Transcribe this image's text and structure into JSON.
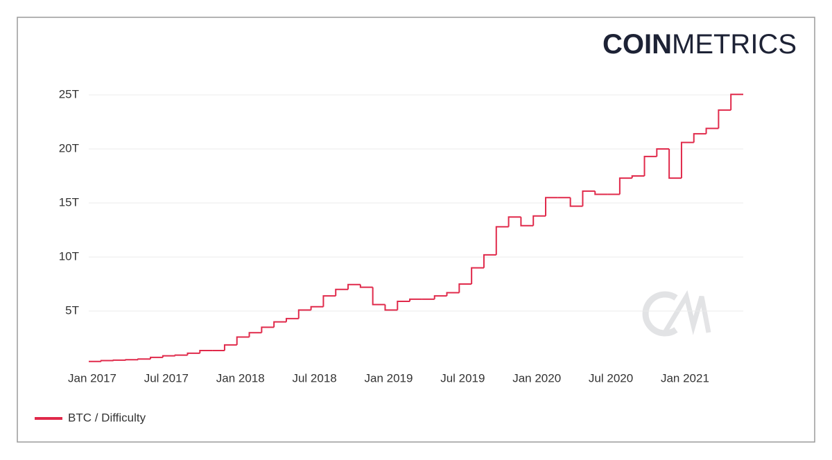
{
  "chart_data": {
    "type": "line",
    "step": true,
    "brand": {
      "bold": "COIN",
      "light": "METRICS"
    },
    "x": [
      "2017-01",
      "2017-02",
      "2017-03",
      "2017-04",
      "2017-05",
      "2017-06",
      "2017-07",
      "2017-08",
      "2017-09",
      "2017-10",
      "2017-11",
      "2017-12",
      "2018-01",
      "2018-02",
      "2018-03",
      "2018-04",
      "2018-05",
      "2018-06",
      "2018-07",
      "2018-08",
      "2018-09",
      "2018-10",
      "2018-11",
      "2018-12",
      "2019-01",
      "2019-02",
      "2019-03",
      "2019-04",
      "2019-05",
      "2019-06",
      "2019-07",
      "2019-08",
      "2019-09",
      "2019-10",
      "2019-11",
      "2019-12",
      "2020-01",
      "2020-02",
      "2020-03",
      "2020-04",
      "2020-05",
      "2020-06",
      "2020-07",
      "2020-08",
      "2020-09",
      "2020-10",
      "2020-11",
      "2020-12",
      "2021-01",
      "2021-02",
      "2021-03",
      "2021-04",
      "2021-05"
    ],
    "series": [
      {
        "name": "BTC / Difficulty",
        "color": "#e0294a",
        "values": [
          0.34,
          0.42,
          0.46,
          0.5,
          0.56,
          0.71,
          0.86,
          0.92,
          1.1,
          1.35,
          1.35,
          1.87,
          2.6,
          3.0,
          3.5,
          4.0,
          4.3,
          5.1,
          5.4,
          6.4,
          7.0,
          7.45,
          7.2,
          5.6,
          5.1,
          5.9,
          6.1,
          6.1,
          6.4,
          6.7,
          7.5,
          9.0,
          10.2,
          12.8,
          13.7,
          12.9,
          13.8,
          15.5,
          15.5,
          14.7,
          16.1,
          15.8,
          15.8,
          17.3,
          17.5,
          19.3,
          20.0,
          17.3,
          20.6,
          21.4,
          21.9,
          23.6,
          25.05
        ]
      }
    ],
    "xlim": [
      "2017-01",
      "2021-06"
    ],
    "xticks": [
      {
        "value": "2017-01",
        "label": "Jan 2017"
      },
      {
        "value": "2017-07",
        "label": "Jul 2017"
      },
      {
        "value": "2018-01",
        "label": "Jan 2018"
      },
      {
        "value": "2018-07",
        "label": "Jul 2018"
      },
      {
        "value": "2019-01",
        "label": "Jan 2019"
      },
      {
        "value": "2019-07",
        "label": "Jul 2019"
      },
      {
        "value": "2020-01",
        "label": "Jan 2020"
      },
      {
        "value": "2020-07",
        "label": "Jul 2020"
      },
      {
        "value": "2021-01",
        "label": "Jan 2021"
      }
    ],
    "ylim": [
      0,
      25
    ],
    "yticks": [
      {
        "value": 5,
        "label": "5T"
      },
      {
        "value": 10,
        "label": "10T"
      },
      {
        "value": 15,
        "label": "15T"
      },
      {
        "value": 20,
        "label": "20T"
      },
      {
        "value": 25,
        "label": "25T"
      }
    ],
    "grid": true,
    "legend": "bottom-left"
  }
}
